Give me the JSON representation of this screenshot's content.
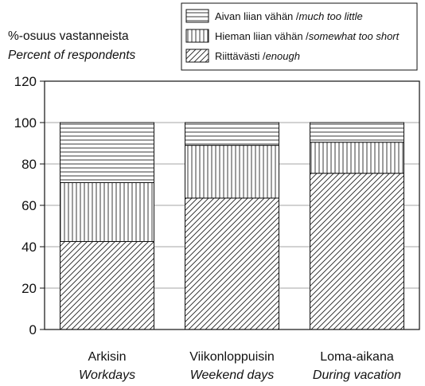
{
  "chart_data": {
    "type": "bar",
    "stacked": true,
    "ylabel": "%-osuus vastanneista",
    "ylabel_en": "Percent of respondents",
    "ylim": [
      0,
      120
    ],
    "yticks": [
      0,
      20,
      40,
      60,
      80,
      100,
      120
    ],
    "grid": true,
    "legend_position": "top-right",
    "categories": [
      "Arkisin",
      "Viikonloppuisin",
      "Loma-aikana"
    ],
    "categories_en": [
      "Workdays",
      "Weekend days",
      "During vacation"
    ],
    "series": [
      {
        "name": "Riittävästi /",
        "name_en": "enough",
        "pattern": "diagonal",
        "values": [
          42.5,
          63.5,
          75.5
        ]
      },
      {
        "name": "Hieman liian vähän /",
        "name_en": "somewhat too short",
        "pattern": "vertical",
        "values": [
          28.5,
          25.5,
          15
        ]
      },
      {
        "name": "Aivan liian vähän /",
        "name_en": "much too little",
        "pattern": "horizontal",
        "values": [
          29,
          11,
          9.5
        ]
      }
    ]
  }
}
